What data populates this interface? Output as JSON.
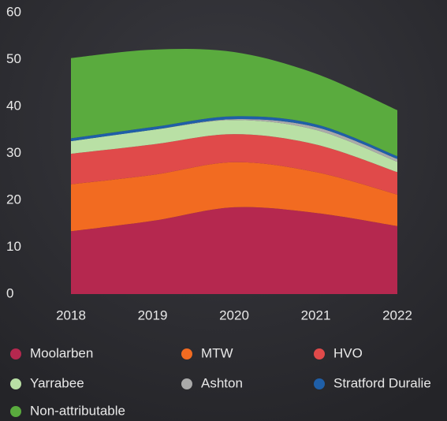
{
  "chart_data": {
    "type": "stacked_area",
    "categories": [
      "2018",
      "2019",
      "2020",
      "2021",
      "2022"
    ],
    "series": [
      {
        "name": "Moolarben",
        "color": "#b5284f",
        "values": [
          13.4,
          15.6,
          18.5,
          17.3,
          14.5
        ]
      },
      {
        "name": "MTW",
        "color": "#f26b21",
        "values": [
          10,
          9.8,
          9.6,
          8.7,
          6.7
        ]
      },
      {
        "name": "HVO",
        "color": "#e04a4a",
        "values": [
          6.5,
          6.5,
          6,
          5.9,
          4.8
        ]
      },
      {
        "name": "Yarrabee",
        "color": "#b9e0a5",
        "values": [
          2.7,
          3.1,
          3,
          3.1,
          2.2
        ]
      },
      {
        "name": "Ashton",
        "color": "#aaaaaa",
        "values": [
          0,
          0,
          0.2,
          0.6,
          0.6
        ]
      },
      {
        "name": "Stratford Duralie",
        "color": "#1f5fa8",
        "values": [
          0.6,
          0.6,
          0.6,
          0.6,
          0.6
        ]
      },
      {
        "name": "Non-attributable",
        "color": "#5aab3e",
        "values": [
          17.1,
          16.5,
          13.7,
          10.8,
          9.8
        ]
      }
    ],
    "ylim": [
      0,
      60
    ],
    "yticks": [
      0,
      10,
      20,
      30,
      40,
      50,
      60
    ],
    "legend": "bottom"
  }
}
